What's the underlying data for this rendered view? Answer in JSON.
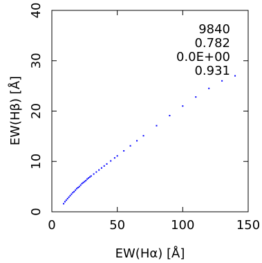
{
  "chart_data": {
    "type": "scatter",
    "xlabel": "EW(Hα) [Å]",
    "ylabel": "EW(Hβ) [Å]",
    "xlim": [
      0,
      150
    ],
    "ylim": [
      0,
      40
    ],
    "xticks": [
      "0",
      "50",
      "100",
      "150"
    ],
    "yticks": [
      "0",
      "10",
      "20",
      "30",
      "40"
    ],
    "point_color": "#0000ff",
    "grid": false,
    "annotations": [
      "9840",
      "0.782",
      "0.0E+00",
      "0.931"
    ],
    "series": [
      {
        "x": [
          9,
          10,
          11,
          12,
          13,
          14,
          15,
          16,
          17,
          18,
          19,
          20,
          21,
          22,
          23,
          24,
          25,
          26,
          27,
          28,
          29,
          30,
          32,
          34,
          36,
          38,
          40,
          42,
          45,
          48,
          50,
          55,
          60,
          65,
          70,
          80,
          90,
          100,
          110,
          120,
          130,
          140
        ],
        "y": [
          1.6,
          2.0,
          2.3,
          2.6,
          2.9,
          3.2,
          3.5,
          3.8,
          4.0,
          4.3,
          4.6,
          4.8,
          5.0,
          5.3,
          5.6,
          5.8,
          6.0,
          6.2,
          6.5,
          6.7,
          6.9,
          7.1,
          7.5,
          7.9,
          8.3,
          8.7,
          9.1,
          9.5,
          10.1,
          10.7,
          11.1,
          12.1,
          13.1,
          14.1,
          15.1,
          17.1,
          19.1,
          21.0,
          22.8,
          24.5,
          26.0,
          27.0
        ]
      }
    ]
  }
}
